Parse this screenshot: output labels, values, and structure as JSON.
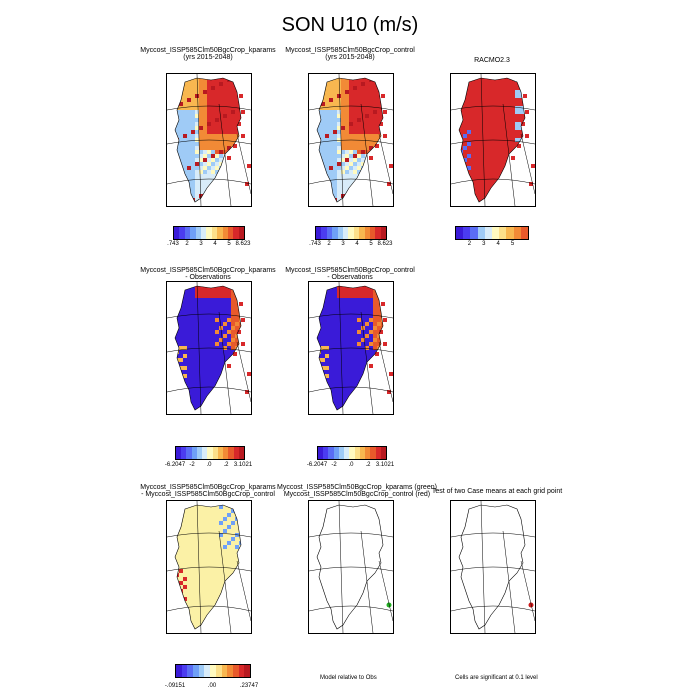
{
  "title": "SON U10 (m/s)",
  "panels": {
    "p1": {
      "title1": "Myccost_ISSP585Clm50BgcCrop_kparams",
      "title2": "(yrs 2015-2048)"
    },
    "p2": {
      "title1": "Myccost_ISSP585Clm50BgcCrop_control",
      "title2": "(yrs 2015-2048)"
    },
    "p3": {
      "title1": "RACMO2.3"
    },
    "p4": {
      "title1": "Myccost_ISSP585Clm50BgcCrop_kparams",
      "title2": "- Observations"
    },
    "p5": {
      "title1": "Myccost_ISSP585Clm50BgcCrop_control",
      "title2": "- Observations"
    },
    "p6": {
      "title1": "Myccost_ISSP585Clm50BgcCrop_kparams",
      "title2": "- Myccost_ISSP585Clm50BgcCrop_control"
    },
    "p7": {
      "title1": "Myccost_ISSP585Clm50BgcCrop_kparams (green)",
      "title2": "Myccost_ISSP585Clm50BgcCrop_control (red)"
    },
    "p8": {
      "title1": "Test of two Case means at each grid point"
    }
  },
  "colorbars": {
    "abs": {
      "labels": [
        ".743",
        "2",
        "3",
        "4",
        "5",
        "8.623"
      ]
    },
    "obs": {
      "labels": [
        "2",
        "3",
        "4",
        "5"
      ]
    },
    "bias": {
      "labels": [
        "-6.2047",
        "-2",
        ".0",
        ".2",
        "3.1021"
      ]
    },
    "diff": {
      "labels": [
        "-.09151",
        ".00",
        ".23747"
      ]
    }
  },
  "palette": [
    "#3a1bd8",
    "#4b3cf0",
    "#5a6df5",
    "#6fa0f7",
    "#9fcbf6",
    "#d8ecf9",
    "#fffac0",
    "#fce08a",
    "#f8b750",
    "#f28a36",
    "#e85a2b",
    "#d8282a",
    "#b81920"
  ],
  "notes": {
    "model_relative": "Model relative to Obs",
    "cells_significant": "Cells are significant at 0.1 level"
  }
}
